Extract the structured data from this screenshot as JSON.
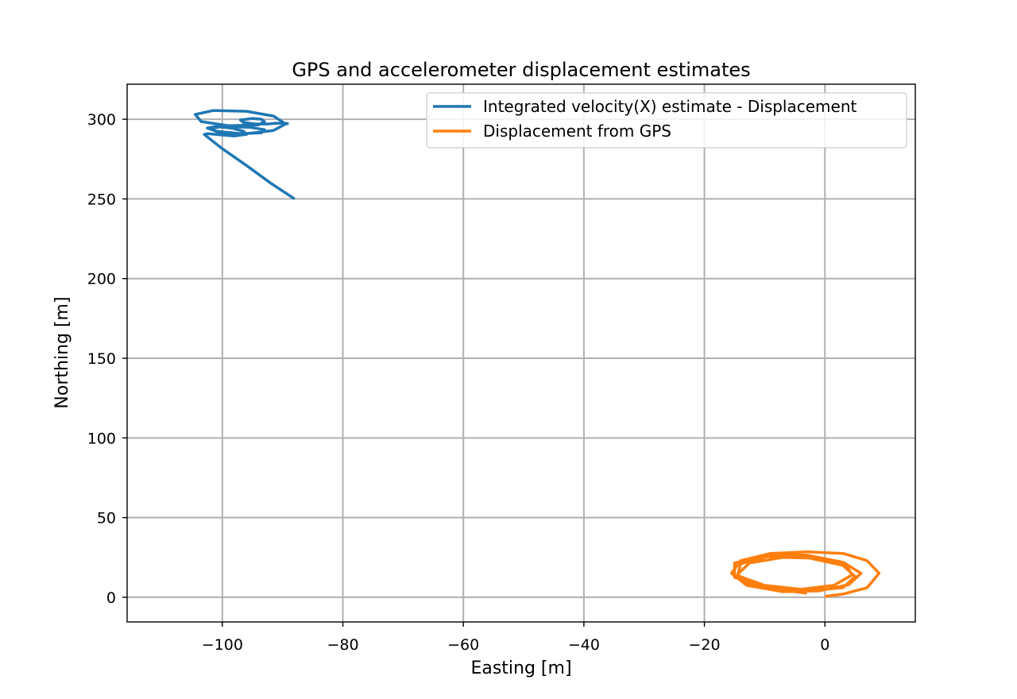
{
  "chart_data": {
    "type": "line",
    "title": "GPS and accelerometer displacement estimates",
    "xlabel": "Easting [m]",
    "ylabel": "Northing [m]",
    "xlim": [
      -115.8,
      15
    ],
    "ylim": [
      -15.5,
      322
    ],
    "xticks": [
      -100,
      -80,
      -60,
      -40,
      -20,
      0
    ],
    "xtick_labels": [
      "−100",
      "−80",
      "−60",
      "−40",
      "−20",
      "0"
    ],
    "yticks": [
      0,
      50,
      100,
      150,
      200,
      250,
      300
    ],
    "ytick_labels": [
      "0",
      "50",
      "100",
      "150",
      "200",
      "250",
      "300"
    ],
    "grid": true,
    "legend": {
      "position": "top-right"
    },
    "series": [
      {
        "name": "Integrated velocity(X) estimate - Displacement",
        "color": "#1f77b4",
        "x": [
          -88.0,
          -92.0,
          -96.0,
          -100.0,
          -103.0,
          -102.5,
          -101.0,
          -98.0,
          -96.0,
          -96.5,
          -98.5,
          -101.0,
          -102.5,
          -101.0,
          -97.0,
          -93.5,
          -93.0,
          -95.5,
          -100.0,
          -102.0,
          -100.5,
          -96.0,
          -91.5,
          -89.5,
          -91.5,
          -96.0,
          -101.5,
          -104.5,
          -103.5,
          -99.0,
          -94.0,
          -93.0,
          -93.5,
          -95.0,
          -97.0,
          -96.5,
          -94.5,
          -92.5,
          -91.0,
          -89.5,
          -89.0
        ],
        "y": [
          250.0,
          260.0,
          271.0,
          281.5,
          290.5,
          291.0,
          290.5,
          289.5,
          290.5,
          292.5,
          294.5,
          295.5,
          294.5,
          292.5,
          291.0,
          291.5,
          293.5,
          295.0,
          295.5,
          294.0,
          291.5,
          291.0,
          293.0,
          297.0,
          302.0,
          305.0,
          305.5,
          303.0,
          298.5,
          296.0,
          296.5,
          298.5,
          300.0,
          300.5,
          299.5,
          298.0,
          297.0,
          297.0,
          297.5,
          297.5,
          297.0
        ]
      },
      {
        "name": "Displacement from GPS",
        "color": "#ff7f0e",
        "x": [
          0.0,
          3.0,
          7.0,
          9.0,
          7.0,
          3.0,
          -3.0,
          -9.0,
          -14.0,
          -15.5,
          -13.0,
          -7.0,
          -1.0,
          4.0,
          6.0,
          3.0,
          -3.0,
          -10.0,
          -15.0,
          -15.0,
          -10.0,
          -3.0,
          3.0,
          5.0,
          3.0,
          -3.0,
          -9.5,
          -14.0,
          -14.5,
          -10.0,
          -4.0,
          1.5,
          4.5,
          3.5,
          -1.0,
          -7.0,
          -12.5,
          -14.5,
          -12.5,
          -7.0,
          -3.0
        ],
        "y": [
          0.5,
          2.0,
          6.0,
          15.0,
          23.0,
          27.5,
          28.5,
          27.5,
          23.0,
          15.0,
          7.5,
          3.5,
          4.0,
          8.0,
          15.0,
          22.0,
          26.5,
          26.5,
          21.5,
          12.5,
          6.0,
          4.0,
          6.0,
          13.0,
          20.0,
          25.0,
          25.5,
          21.0,
          13.5,
          7.5,
          5.0,
          7.5,
          14.0,
          20.5,
          24.5,
          25.0,
          21.5,
          14.5,
          8.0,
          4.5,
          2.5
        ]
      }
    ]
  }
}
